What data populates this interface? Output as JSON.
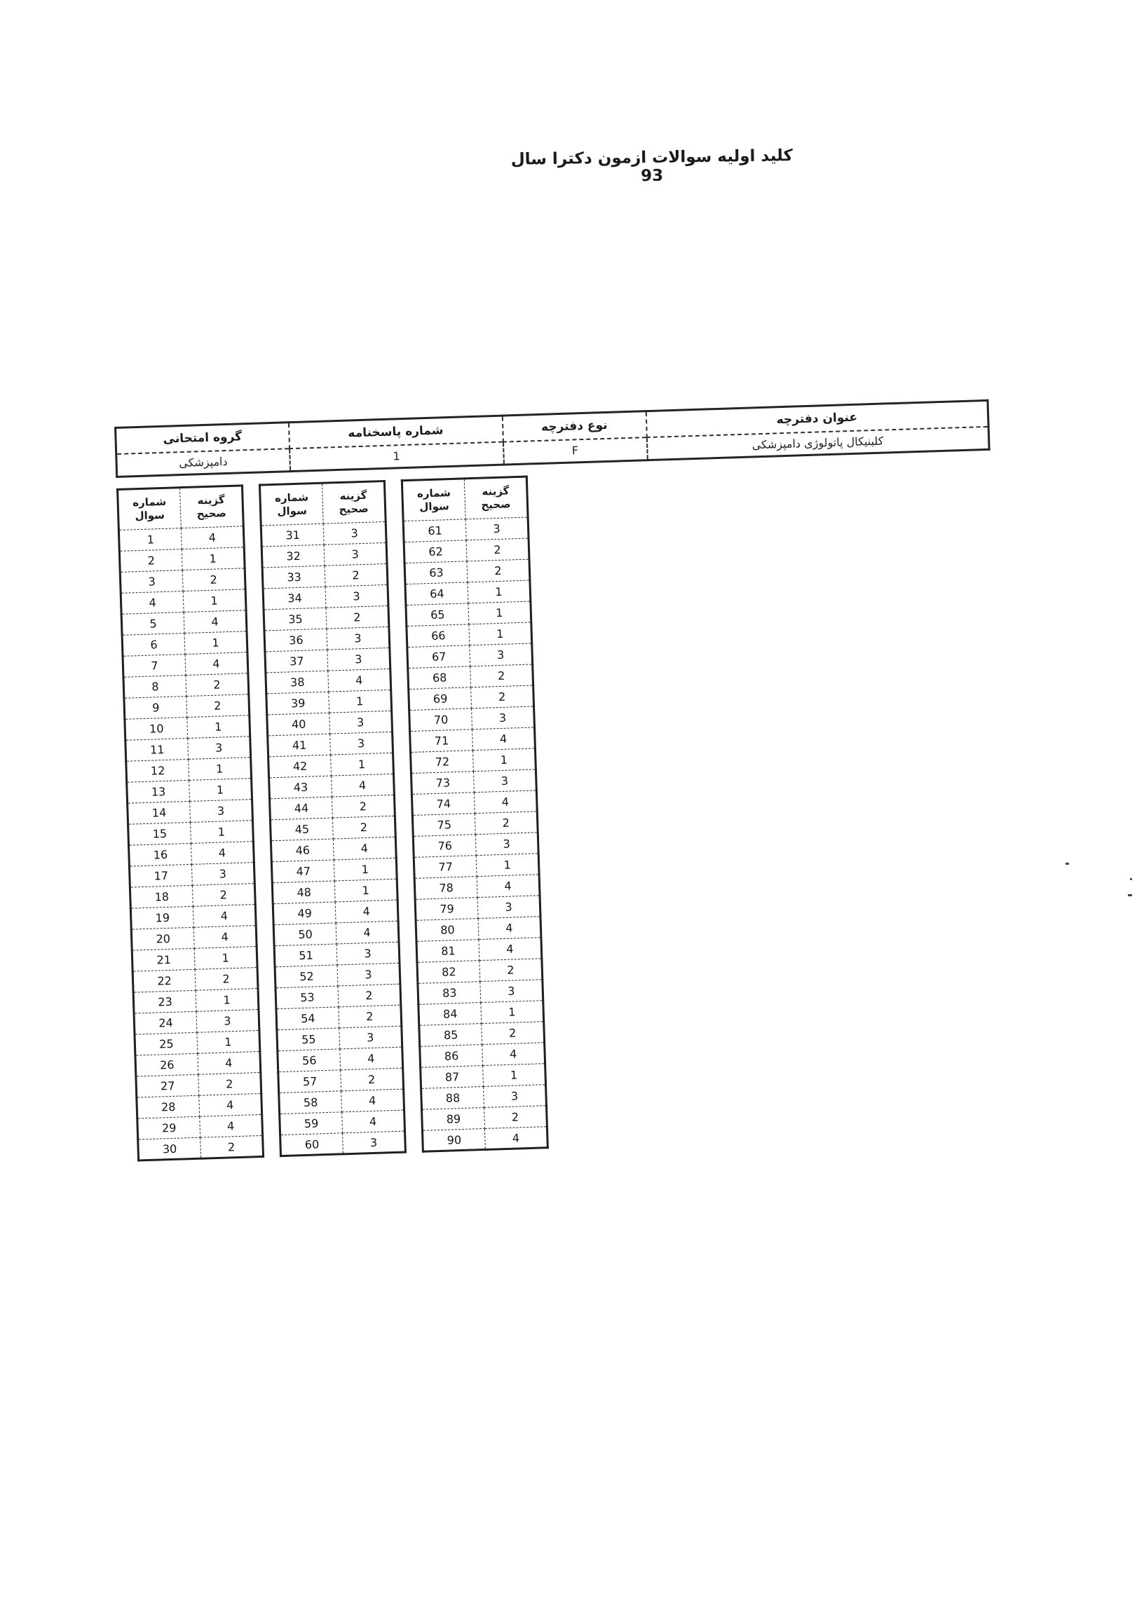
{
  "title": "کلید اولیه سوالات ازمون دکترا سال 93",
  "info_table": {
    "columns": [
      {
        "id": "booklet-title",
        "label": "عنوان دفترچه",
        "value": "کلینیکال پاتولوژی دامپزشکی"
      },
      {
        "id": "booklet-type",
        "label": "نوع دفترچه",
        "value": "F"
      },
      {
        "id": "answersheet-number",
        "label": "شماره پاسخنامه",
        "value": "1"
      },
      {
        "id": "exam-group",
        "label": "گروه امتحانی",
        "value": "دامپزشکی"
      }
    ]
  },
  "answer_key": {
    "question_header": "شماره سوال",
    "answer_header": "گزینه صحیح",
    "tables": [
      {
        "rows": [
          [
            1,
            4
          ],
          [
            2,
            1
          ],
          [
            3,
            2
          ],
          [
            4,
            1
          ],
          [
            5,
            4
          ],
          [
            6,
            1
          ],
          [
            7,
            4
          ],
          [
            8,
            2
          ],
          [
            9,
            2
          ],
          [
            10,
            1
          ],
          [
            11,
            3
          ],
          [
            12,
            1
          ],
          [
            13,
            1
          ],
          [
            14,
            3
          ],
          [
            15,
            1
          ],
          [
            16,
            4
          ],
          [
            17,
            3
          ],
          [
            18,
            2
          ],
          [
            19,
            4
          ],
          [
            20,
            4
          ],
          [
            21,
            1
          ],
          [
            22,
            2
          ],
          [
            23,
            1
          ],
          [
            24,
            3
          ],
          [
            25,
            1
          ],
          [
            26,
            4
          ],
          [
            27,
            2
          ],
          [
            28,
            4
          ],
          [
            29,
            4
          ],
          [
            30,
            2
          ]
        ]
      },
      {
        "rows": [
          [
            31,
            3
          ],
          [
            32,
            3
          ],
          [
            33,
            2
          ],
          [
            34,
            3
          ],
          [
            35,
            2
          ],
          [
            36,
            3
          ],
          [
            37,
            3
          ],
          [
            38,
            4
          ],
          [
            39,
            1
          ],
          [
            40,
            3
          ],
          [
            41,
            3
          ],
          [
            42,
            1
          ],
          [
            43,
            4
          ],
          [
            44,
            2
          ],
          [
            45,
            2
          ],
          [
            46,
            4
          ],
          [
            47,
            1
          ],
          [
            48,
            1
          ],
          [
            49,
            4
          ],
          [
            50,
            4
          ],
          [
            51,
            3
          ],
          [
            52,
            3
          ],
          [
            53,
            2
          ],
          [
            54,
            2
          ],
          [
            55,
            3
          ],
          [
            56,
            4
          ],
          [
            57,
            2
          ],
          [
            58,
            4
          ],
          [
            59,
            4
          ],
          [
            60,
            3
          ]
        ]
      },
      {
        "rows": [
          [
            61,
            3
          ],
          [
            62,
            2
          ],
          [
            63,
            2
          ],
          [
            64,
            1
          ],
          [
            65,
            1
          ],
          [
            66,
            1
          ],
          [
            67,
            3
          ],
          [
            68,
            2
          ],
          [
            69,
            2
          ],
          [
            70,
            3
          ],
          [
            71,
            4
          ],
          [
            72,
            1
          ],
          [
            73,
            3
          ],
          [
            74,
            4
          ],
          [
            75,
            2
          ],
          [
            76,
            3
          ],
          [
            77,
            1
          ],
          [
            78,
            4
          ],
          [
            79,
            3
          ],
          [
            80,
            4
          ],
          [
            81,
            4
          ],
          [
            82,
            2
          ],
          [
            83,
            3
          ],
          [
            84,
            1
          ],
          [
            85,
            2
          ],
          [
            86,
            4
          ],
          [
            87,
            1
          ],
          [
            88,
            3
          ],
          [
            89,
            2
          ],
          [
            90,
            4
          ]
        ]
      }
    ]
  }
}
